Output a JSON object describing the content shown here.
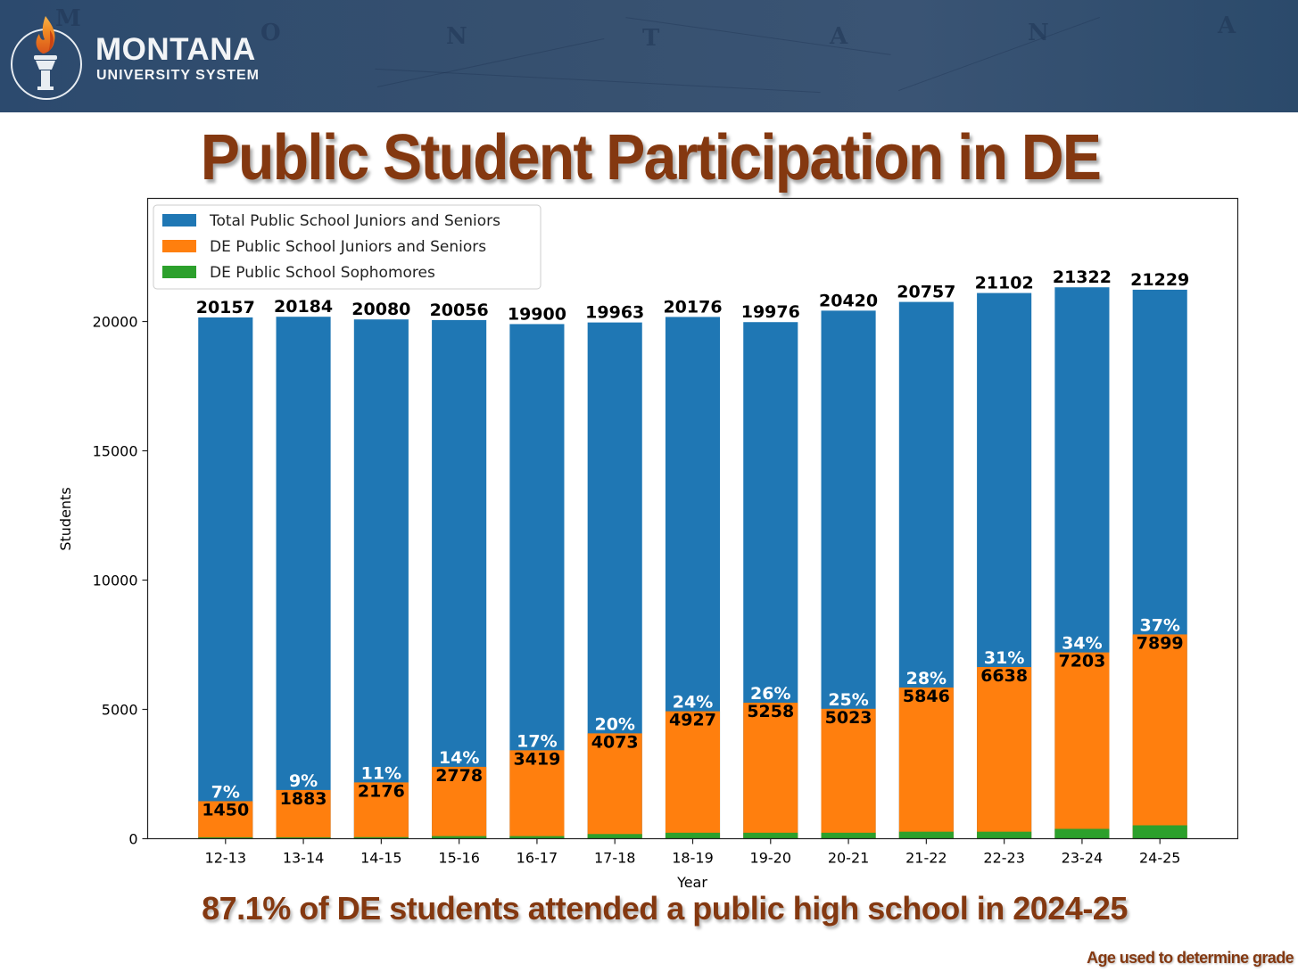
{
  "header": {
    "logo_main": "MONTANA",
    "logo_sub": "UNIVERSITY SYSTEM",
    "background_letters": [
      "M",
      "O",
      "N",
      "T",
      "A",
      "N",
      "A"
    ]
  },
  "title": "Public Student Participation in DE",
  "subtitle": "87.1% of DE students attended a public high school in 2024-25",
  "footnote": "Age used to determine grade",
  "colors": {
    "brand_text": "#843810",
    "header_bg": "#36506f",
    "total": "#1f77b4",
    "de_juniors_seniors": "#ff7f0e",
    "de_sophomores": "#2ca02c"
  },
  "chart_data": {
    "type": "bar",
    "stacked": "overlapping",
    "title": "",
    "xlabel": "Year",
    "ylabel": "Students",
    "ylim": [
      0,
      24760
    ],
    "yticks": [
      0,
      5000,
      10000,
      15000,
      20000
    ],
    "grid": false,
    "legend_position": "top-left",
    "categories": [
      "12-13",
      "13-14",
      "14-15",
      "15-16",
      "16-17",
      "17-18",
      "18-19",
      "19-20",
      "20-21",
      "21-22",
      "22-23",
      "23-24",
      "24-25"
    ],
    "series": [
      {
        "name": "Total Public School Juniors and Seniors",
        "color": "#1f77b4",
        "values": [
          20157,
          20184,
          20080,
          20056,
          19900,
          19963,
          20176,
          19976,
          20420,
          20757,
          21102,
          21322,
          21229
        ]
      },
      {
        "name": "DE Public School Juniors and Seniors",
        "color": "#ff7f0e",
        "values": [
          1450,
          1883,
          2176,
          2778,
          3419,
          4073,
          4927,
          5258,
          5023,
          5846,
          6638,
          7203,
          7899
        ]
      },
      {
        "name": "DE Public School Sophomores",
        "color": "#2ca02c",
        "values": [
          50,
          50,
          60,
          100,
          100,
          180,
          230,
          230,
          230,
          270,
          270,
          380,
          517
        ]
      }
    ],
    "percent_labels": [
      "7%",
      "9%",
      "11%",
      "14%",
      "17%",
      "20%",
      "24%",
      "26%",
      "25%",
      "28%",
      "31%",
      "34%",
      "37%"
    ]
  }
}
